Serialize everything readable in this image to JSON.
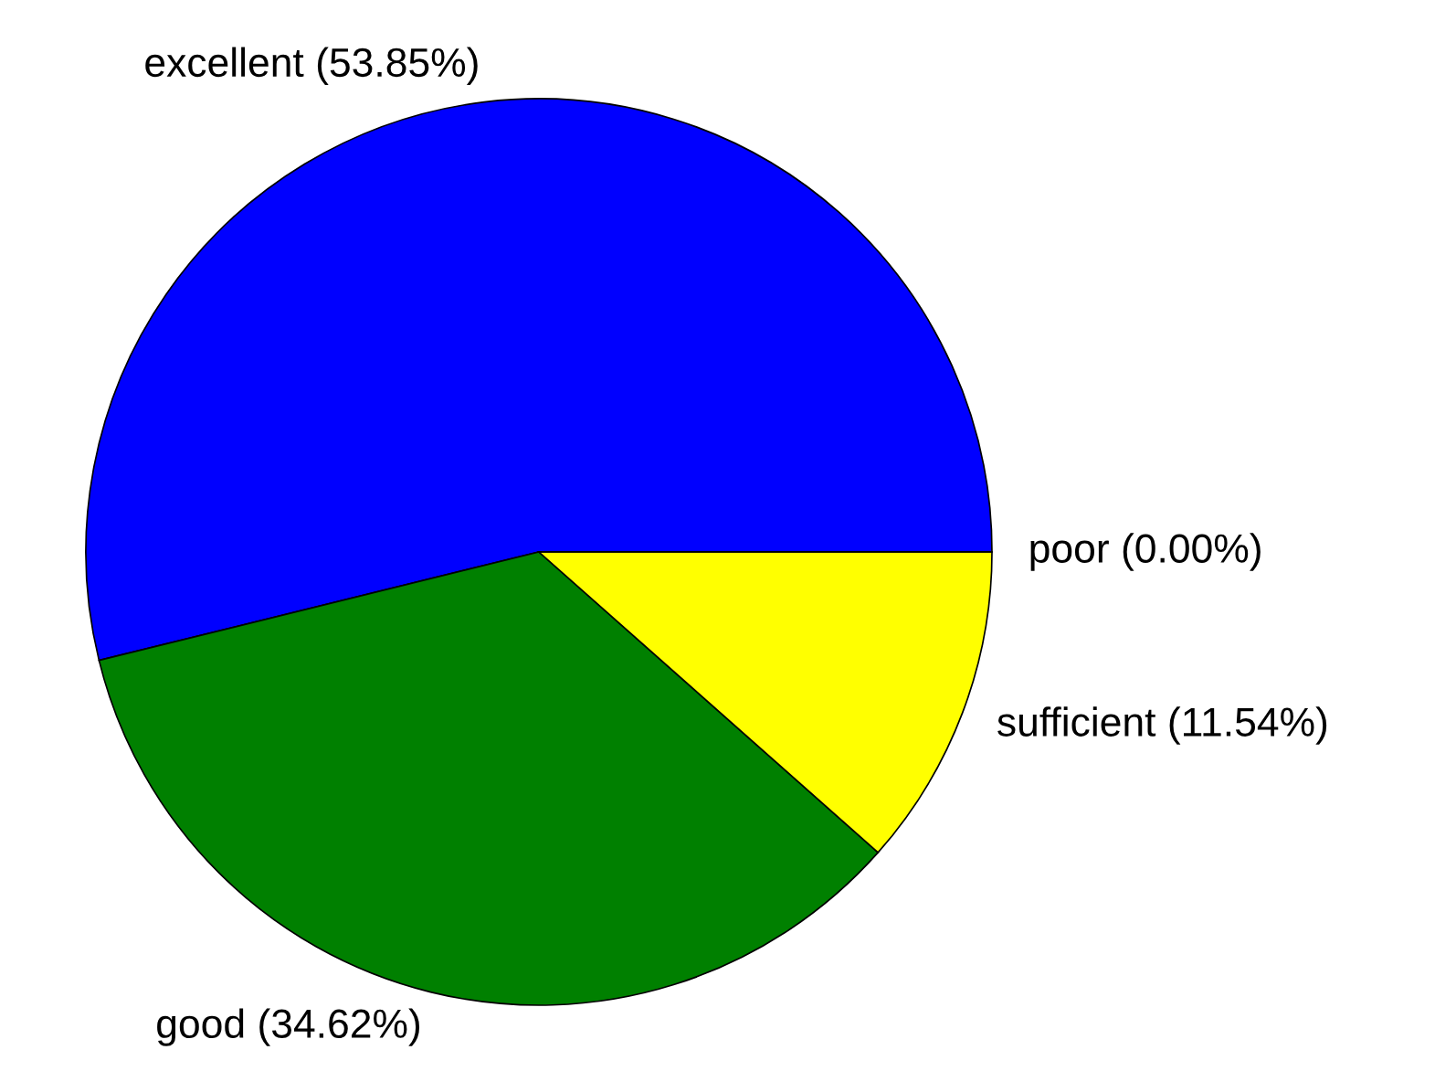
{
  "chart_data": {
    "type": "pie",
    "categories": [
      "excellent",
      "good",
      "sufficient",
      "poor"
    ],
    "values": [
      53.85,
      34.62,
      11.54,
      0.0
    ],
    "value_labels": [
      "(53.85%)",
      "(34.62%)",
      "(11.54%)",
      "(0.00%)"
    ],
    "colors": [
      "#0000ff",
      "#008000",
      "#ffff00",
      "#ff0000"
    ],
    "legend": false
  }
}
